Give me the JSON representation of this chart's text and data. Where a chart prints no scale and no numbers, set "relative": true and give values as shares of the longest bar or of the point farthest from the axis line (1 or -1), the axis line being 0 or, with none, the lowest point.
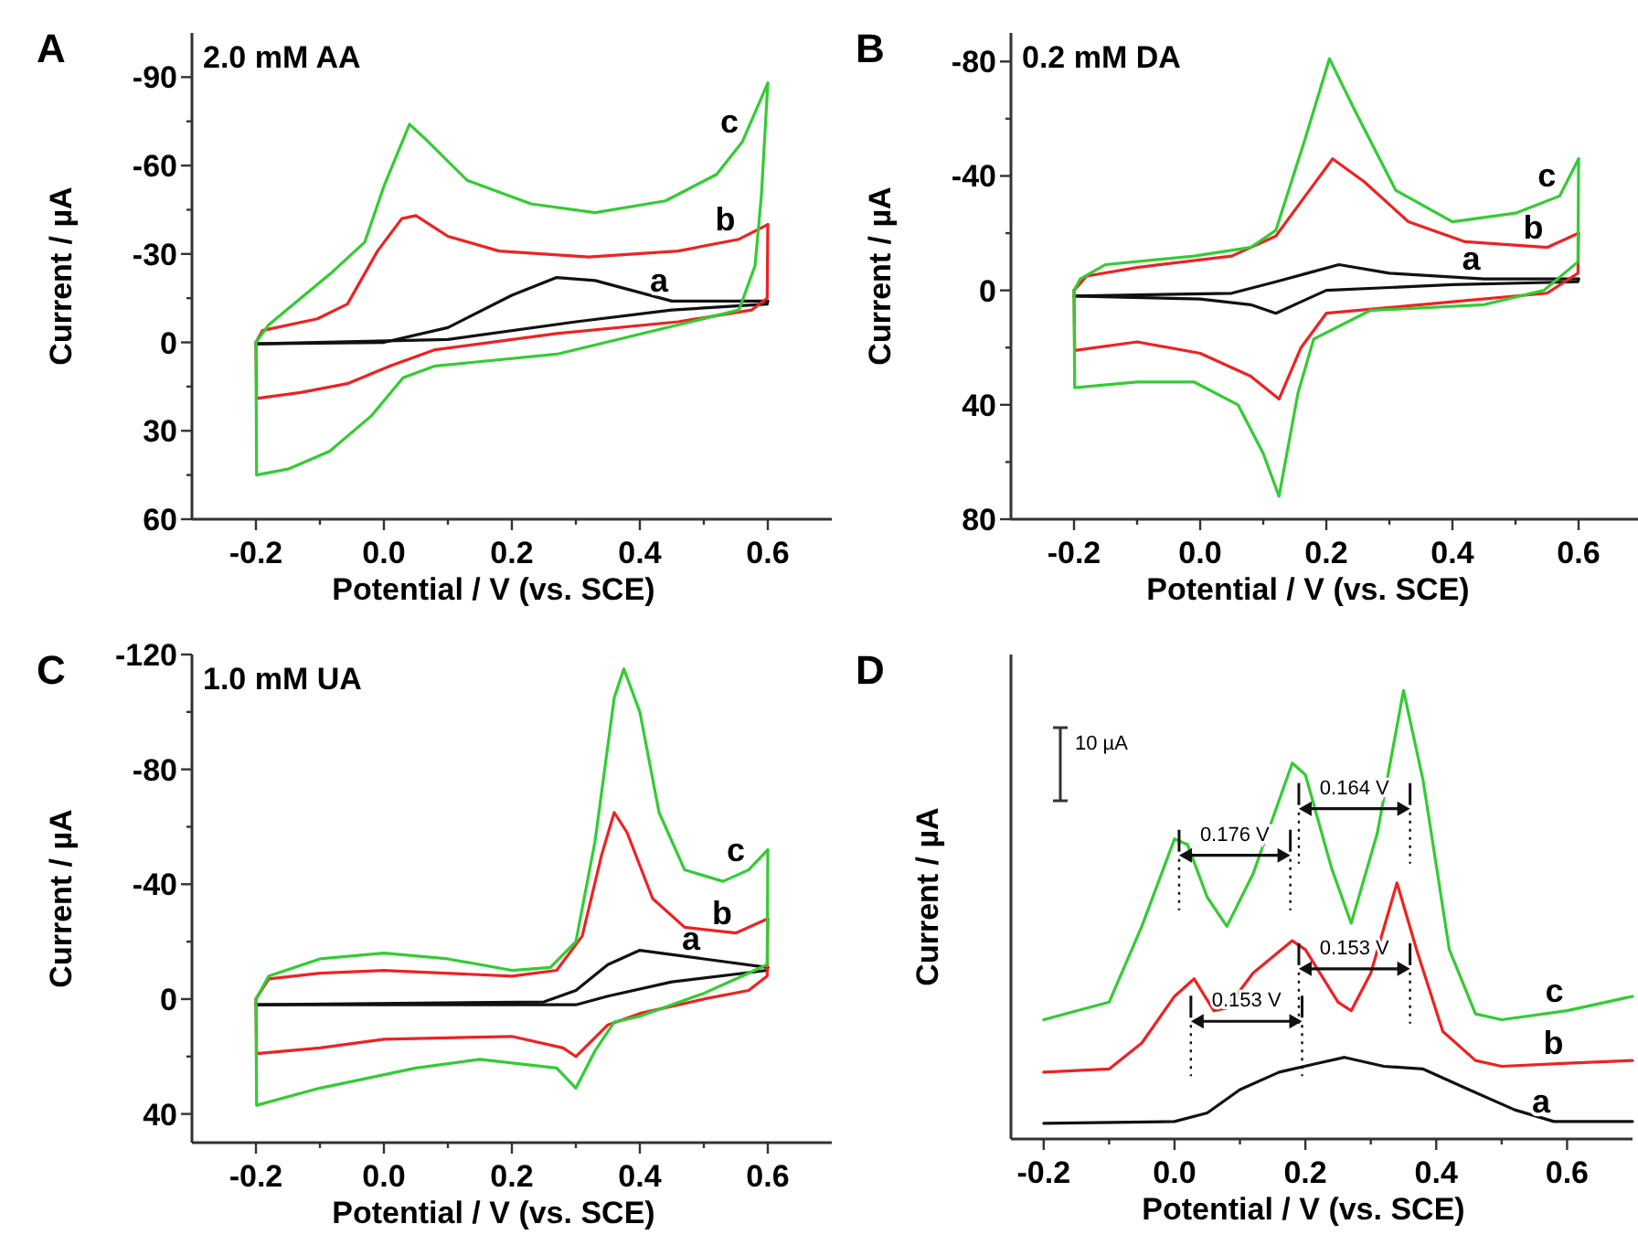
{
  "chart_data": [
    {
      "type": "line",
      "title": "2.0 mM AA",
      "xlabel": "Potential / V (vs. SCE)",
      "ylabel": "Current / µA",
      "annotations": [
        "A"
      ],
      "xlim": [
        -0.3,
        0.7
      ],
      "xticks": [
        {
          "value": -0.2,
          "label": "-0.2"
        },
        {
          "value": -0.1,
          "label": null
        },
        {
          "value": 0,
          "label": "0.0"
        },
        {
          "value": 0.1,
          "label": null
        },
        {
          "value": 0.2,
          "label": "0.2"
        },
        {
          "value": 0.3,
          "label": null
        },
        {
          "value": 0.4,
          "label": "0.4"
        },
        {
          "value": 0.5,
          "label": null
        },
        {
          "value": 0.6,
          "label": "0.6"
        }
      ],
      "ylim": [
        60,
        -105
      ],
      "yticks": [
        -90,
        {
          "value": -75,
          "label": null
        },
        -60,
        {
          "value": -45,
          "label": null
        },
        -30,
        {
          "value": -15,
          "label": null
        },
        0,
        {
          "value": 15,
          "label": null
        },
        30,
        {
          "value": 45,
          "label": null
        },
        60
      ],
      "series": [
        {
          "name": "a",
          "color": "#111111",
          "x": [
            -0.2,
            0.0,
            0.1,
            0.2,
            0.27,
            0.33,
            0.45,
            0.6
          ],
          "values": [
            0.5,
            0,
            -5,
            -16,
            -22,
            -21,
            -14,
            -14
          ]
        },
        {
          "color": "#111111",
          "x": [
            0.6,
            0.599,
            0.45,
            0.3,
            0.1,
            -0.2
          ],
          "values": [
            -14,
            -13,
            -11,
            -7,
            -1,
            0.5
          ]
        },
        {
          "name": "b",
          "color": "#ee2222",
          "x": [
            -0.2,
            -0.19,
            -0.104,
            -0.057,
            -0.01,
            0.028,
            0.05,
            0.1,
            0.18,
            0.32,
            0.46,
            0.555,
            0.6
          ],
          "values": [
            0,
            -4,
            -8,
            -13,
            -31,
            -42,
            -43,
            -36,
            -31,
            -29,
            -31,
            -35,
            -40
          ]
        },
        {
          "color": "#ee2222",
          "x": [
            0.6,
            0.599,
            0.575,
            0.46,
            0.27,
            0.08,
            0.01,
            -0.057,
            -0.13,
            -0.199,
            -0.2
          ],
          "values": [
            -40,
            -15,
            -11,
            -7,
            -3,
            2.5,
            8,
            14,
            17,
            19,
            0
          ]
        },
        {
          "name": "c",
          "color": "#33cc33",
          "x": [
            -0.2,
            -0.18,
            -0.13,
            -0.08,
            -0.03,
            0.0,
            0.04,
            0.065,
            0.13,
            0.23,
            0.33,
            0.44,
            0.52,
            0.56,
            0.6
          ],
          "values": [
            0,
            -6,
            -15,
            -24,
            -34,
            -53,
            -74,
            -69,
            -55,
            -47,
            -44,
            -48,
            -57,
            -68,
            -88
          ]
        },
        {
          "color": "#33cc33",
          "x": [
            0.6,
            0.59,
            0.58,
            0.555,
            0.48,
            0.27,
            0.08,
            0.03,
            -0.02,
            -0.085,
            -0.15,
            -0.199,
            -0.2
          ],
          "values": [
            -88,
            -50,
            -26,
            -11,
            -7,
            4,
            8,
            12,
            25,
            37,
            43,
            45,
            0
          ]
        }
      ]
    },
    {
      "type": "line",
      "title": "0.2 mM DA",
      "xlabel": "Potential / V (vs. SCE)",
      "ylabel": "Current / µA",
      "annotations": [
        "B"
      ],
      "xlim": [
        -0.3,
        0.7
      ],
      "xticks": [
        {
          "value": -0.2,
          "label": "-0.2"
        },
        {
          "value": -0.1,
          "label": null
        },
        {
          "value": 0,
          "label": "0.0"
        },
        {
          "value": 0.1,
          "label": null
        },
        {
          "value": 0.2,
          "label": "0.2"
        },
        {
          "value": 0.3,
          "label": null
        },
        {
          "value": 0.4,
          "label": "0.4"
        },
        {
          "value": 0.5,
          "label": null
        },
        {
          "value": 0.6,
          "label": "0.6"
        }
      ],
      "ylim": [
        80,
        -90
      ],
      "yticks": [
        -80,
        {
          "value": -60,
          "label": null
        },
        -40,
        {
          "value": -20,
          "label": null
        },
        0,
        {
          "value": 20,
          "label": null
        },
        40,
        {
          "value": 60,
          "label": null
        },
        80
      ],
      "series": [
        {
          "name": "a",
          "color": "#111111",
          "x": [
            -0.2,
            0.05,
            0.12,
            0.17,
            0.22,
            0.3,
            0.45,
            0.6
          ],
          "values": [
            2,
            1,
            -3,
            -6,
            -9,
            -6,
            -4,
            -4
          ]
        },
        {
          "color": "#111111",
          "x": [
            0.6,
            0.599,
            0.4,
            0.2,
            0.16,
            0.12,
            0.08,
            0.0,
            -0.2
          ],
          "values": [
            -4,
            -3,
            -2,
            0,
            4,
            8,
            5,
            3,
            2
          ]
        },
        {
          "name": "b",
          "color": "#ee2222",
          "x": [
            -0.2,
            -0.18,
            -0.1,
            0.05,
            0.12,
            0.18,
            0.21,
            0.26,
            0.33,
            0.42,
            0.55,
            0.6
          ],
          "values": [
            0,
            -5,
            -8,
            -12,
            -19,
            -37,
            -46,
            -38,
            -24,
            -17,
            -15,
            -20
          ]
        },
        {
          "color": "#ee2222",
          "x": [
            0.6,
            0.599,
            0.55,
            0.4,
            0.2,
            0.16,
            0.125,
            0.08,
            0.0,
            -0.1,
            -0.199,
            -0.2
          ],
          "values": [
            -20,
            -6,
            1,
            4,
            8,
            20,
            38,
            30,
            22,
            18,
            21,
            0
          ]
        },
        {
          "name": "c",
          "color": "#33cc33",
          "x": [
            -0.2,
            -0.19,
            -0.15,
            -0.01,
            0.08,
            0.12,
            0.165,
            0.205,
            0.245,
            0.31,
            0.4,
            0.5,
            0.57,
            0.6
          ],
          "values": [
            0,
            -4,
            -9,
            -12,
            -15,
            -21,
            -52,
            -81,
            -63,
            -35,
            -24,
            -27,
            -33,
            -46
          ]
        },
        {
          "color": "#33cc33",
          "x": [
            0.6,
            0.599,
            0.545,
            0.45,
            0.27,
            0.18,
            0.155,
            0.125,
            0.1,
            0.06,
            -0.01,
            -0.1,
            -0.199,
            -0.2
          ],
          "values": [
            -46,
            -10,
            0,
            5,
            7,
            17,
            36,
            72,
            57,
            40,
            32,
            32,
            34,
            0
          ]
        }
      ]
    },
    {
      "type": "line",
      "title": "1.0 mM UA",
      "xlabel": "Potential / V (vs. SCE)",
      "ylabel": "Current / µA",
      "annotations": [
        "C"
      ],
      "xlim": [
        -0.3,
        0.7
      ],
      "xticks": [
        {
          "value": -0.2,
          "label": "-0.2"
        },
        {
          "value": -0.1,
          "label": null
        },
        {
          "value": 0,
          "label": "0.0"
        },
        {
          "value": 0.1,
          "label": null
        },
        {
          "value": 0.2,
          "label": "0.2"
        },
        {
          "value": 0.3,
          "label": null
        },
        {
          "value": 0.4,
          "label": "0.4"
        },
        {
          "value": 0.5,
          "label": null
        },
        {
          "value": 0.6,
          "label": "0.6"
        }
      ],
      "ylim": [
        50,
        -120
      ],
      "yticks": [
        -120,
        {
          "value": -100,
          "label": null
        },
        -80,
        {
          "value": -60,
          "label": null
        },
        -40,
        {
          "value": -20,
          "label": null
        },
        0,
        {
          "value": 20,
          "label": null
        },
        40
      ],
      "series": [
        {
          "name": "a",
          "color": "#111111",
          "x": [
            -0.2,
            0.25,
            0.3,
            0.35,
            0.4,
            0.5,
            0.6
          ],
          "values": [
            2,
            1,
            -3,
            -12,
            -17,
            -14,
            -11
          ]
        },
        {
          "color": "#111111",
          "x": [
            0.6,
            0.599,
            0.45,
            0.35,
            0.3,
            0.0,
            -0.2
          ],
          "values": [
            -11,
            -10,
            -6,
            -1,
            2,
            2,
            2
          ]
        },
        {
          "name": "b",
          "color": "#ee2222",
          "x": [
            -0.2,
            -0.18,
            -0.1,
            0.0,
            0.2,
            0.27,
            0.31,
            0.34,
            0.36,
            0.38,
            0.42,
            0.47,
            0.55,
            0.6
          ],
          "values": [
            0,
            -7,
            -9,
            -10,
            -8,
            -10,
            -22,
            -50,
            -65,
            -58,
            -35,
            -25,
            -23,
            -28
          ]
        },
        {
          "color": "#ee2222",
          "x": [
            0.6,
            0.599,
            0.57,
            0.5,
            0.4,
            0.35,
            0.3,
            0.28,
            0.2,
            0.0,
            -0.1,
            -0.199,
            -0.2
          ],
          "values": [
            -28,
            -8,
            -3,
            0,
            5,
            9,
            20,
            17,
            13,
            14,
            17,
            19,
            0
          ]
        },
        {
          "name": "c",
          "color": "#33cc33",
          "x": [
            -0.2,
            -0.18,
            -0.1,
            0.0,
            0.1,
            0.2,
            0.26,
            0.3,
            0.33,
            0.36,
            0.375,
            0.4,
            0.43,
            0.47,
            0.53,
            0.57,
            0.6
          ],
          "values": [
            0,
            -8,
            -14,
            -16,
            -14,
            -10,
            -11,
            -20,
            -55,
            -105,
            -115,
            -100,
            -65,
            -45,
            -41,
            -45,
            -52
          ]
        },
        {
          "color": "#33cc33",
          "x": [
            0.6,
            0.599,
            0.56,
            0.5,
            0.4,
            0.36,
            0.33,
            0.3,
            0.27,
            0.15,
            0.05,
            -0.1,
            -0.199,
            -0.2
          ],
          "values": [
            -52,
            -12,
            -8,
            -2,
            6,
            8,
            18,
            31,
            24,
            21,
            24,
            31,
            37,
            0
          ]
        }
      ]
    },
    {
      "type": "line",
      "relative": true,
      "xlabel": "Potential / V (vs. SCE)",
      "ylabel": "Current / µA",
      "annotations": [
        "D",
        "10 µA",
        "0.176 V",
        "0.164 V",
        "0.153 V",
        "0.153 V"
      ],
      "xlim": [
        -0.25,
        0.7
      ],
      "xticks": [
        {
          "value": -0.2,
          "label": "-0.2"
        },
        {
          "value": -0.1,
          "label": null
        },
        {
          "value": 0,
          "label": "0.0"
        },
        {
          "value": 0.1,
          "label": null
        },
        {
          "value": 0.2,
          "label": "0.2"
        },
        {
          "value": 0.3,
          "label": null
        },
        {
          "value": 0.4,
          "label": "0.4"
        },
        {
          "value": 0.5,
          "label": null
        },
        {
          "value": 0.6,
          "label": "0.6"
        }
      ],
      "series": [
        {
          "name": "a",
          "color": "#111111",
          "x": [
            -0.2,
            0.0,
            0.05,
            0.1,
            0.16,
            0.22,
            0.26,
            0.32,
            0.38,
            0.45,
            0.52,
            0.58,
            0.7
          ],
          "values": [
            0.035,
            0.039,
            0.058,
            0.11,
            0.149,
            0.169,
            0.182,
            0.162,
            0.156,
            0.11,
            0.065,
            0.039,
            0.039
          ]
        },
        {
          "name": "b",
          "color": "#ee2222",
          "x": [
            -0.2,
            -0.1,
            -0.05,
            0.0,
            0.03,
            0.06,
            0.08,
            0.12,
            0.18,
            0.2,
            0.25,
            0.27,
            0.3,
            0.34,
            0.37,
            0.41,
            0.46,
            0.5,
            0.6,
            0.7
          ],
          "values": [
            0.149,
            0.156,
            0.214,
            0.318,
            0.357,
            0.286,
            0.292,
            0.37,
            0.442,
            0.422,
            0.305,
            0.286,
            0.37,
            0.571,
            0.422,
            0.24,
            0.175,
            0.162,
            0.169,
            0.175
          ]
        },
        {
          "name": "c",
          "color": "#33cc33",
          "x": [
            -0.2,
            -0.1,
            -0.05,
            0.0,
            0.02,
            0.05,
            0.08,
            0.12,
            0.18,
            0.2,
            0.24,
            0.27,
            0.31,
            0.35,
            0.38,
            0.42,
            0.46,
            0.5,
            0.6,
            0.7
          ],
          "values": [
            0.266,
            0.305,
            0.474,
            0.669,
            0.656,
            0.539,
            0.474,
            0.591,
            0.838,
            0.812,
            0.604,
            0.481,
            0.682,
            1.0,
            0.799,
            0.422,
            0.279,
            0.266,
            0.286,
            0.318
          ]
        }
      ]
    }
  ]
}
